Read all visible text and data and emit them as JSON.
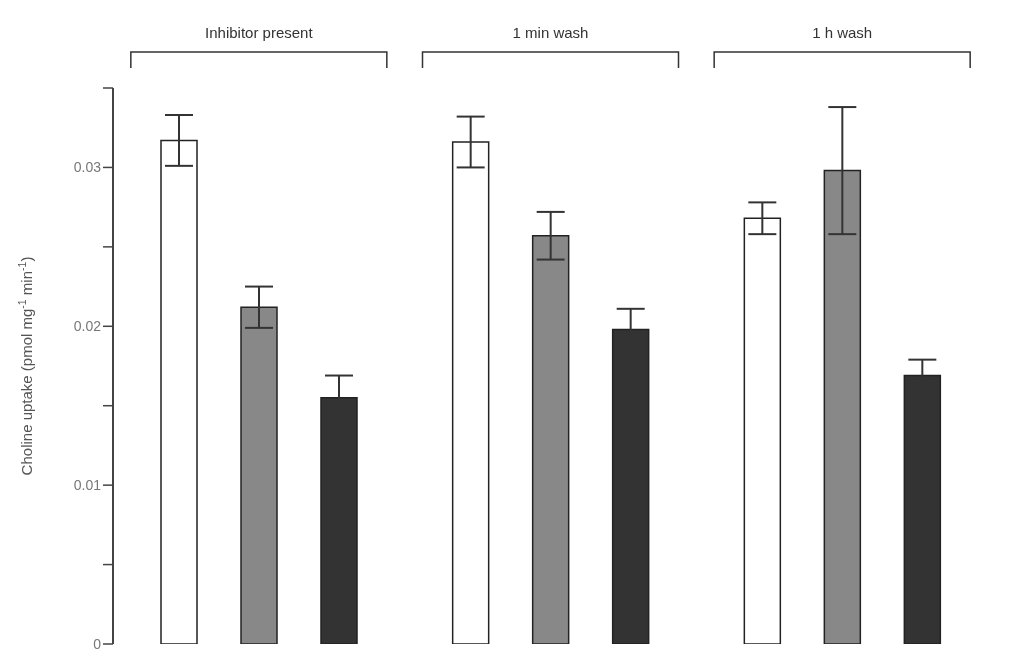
{
  "chart_data": {
    "type": "bar",
    "ylabel": "Choline uptake (pmol mg$^{-1}$ min$^{-1}$)",
    "categories": [
      "Inhibitor present",
      "1 min wash",
      "1 h wash"
    ],
    "series": [
      {
        "color": "#ffffff",
        "values": [
          0.0317,
          0.0316,
          0.0268
        ],
        "errors": [
          0.0016,
          0.0016,
          0.001
        ]
      },
      {
        "color": "#888888",
        "values": [
          0.0212,
          0.0257,
          0.0298
        ],
        "errors": [
          0.0013,
          0.0015,
          0.004
        ]
      },
      {
        "color": "#333333",
        "values": [
          0.0155,
          0.0198,
          0.0169
        ],
        "errors": [
          0.0014,
          0.0013,
          0.001
        ]
      }
    ],
    "ylim": [
      0,
      0.035
    ],
    "yticks": [
      0,
      {
        "value": 0.005,
        "label": null
      },
      0.01,
      {
        "value": 0.015,
        "label": null
      },
      0.02,
      {
        "value": 0.025,
        "label": null
      },
      0.03,
      {
        "value": 0.035,
        "label": null
      }
    ],
    "grid": false,
    "legend": false
  }
}
